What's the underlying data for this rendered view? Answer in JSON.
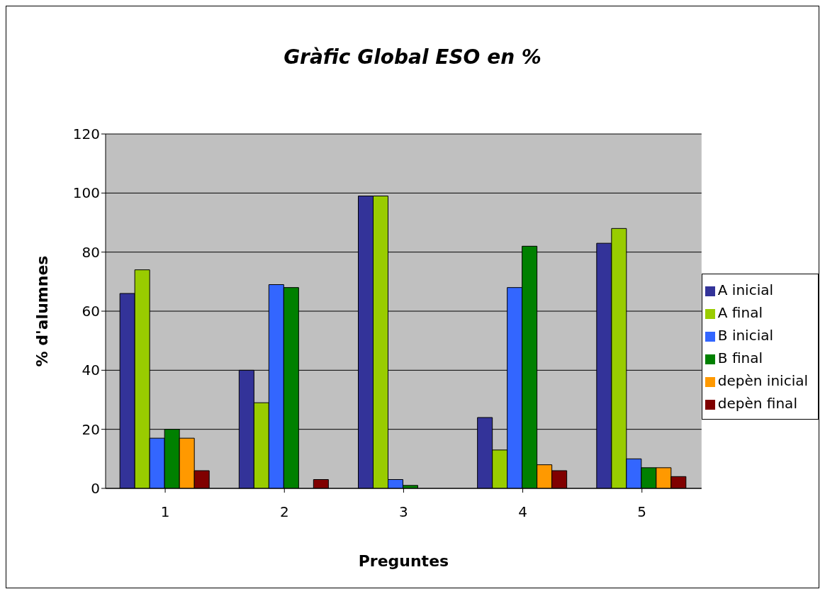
{
  "chart_data": {
    "type": "bar",
    "title": "Gràfic Global ESO en %",
    "xlabel": "Preguntes",
    "ylabel": "% d'alumnes",
    "categories": [
      "1",
      "2",
      "3",
      "4",
      "5"
    ],
    "series": [
      {
        "name": "A inicial",
        "color": "#333399",
        "values": [
          66,
          40,
          99,
          24,
          83
        ]
      },
      {
        "name": "A final",
        "color": "#99cc00",
        "values": [
          74,
          29,
          99,
          13,
          88
        ]
      },
      {
        "name": "B inicial",
        "color": "#3366ff",
        "values": [
          17,
          69,
          3,
          68,
          10
        ]
      },
      {
        "name": "B final",
        "color": "#008000",
        "values": [
          20,
          68,
          1,
          82,
          7
        ]
      },
      {
        "name": "depèn inicial",
        "color": "#ff9900",
        "values": [
          17,
          0,
          0,
          8,
          7
        ]
      },
      {
        "name": "depèn final",
        "color": "#800000",
        "values": [
          6,
          3,
          0,
          6,
          4
        ]
      }
    ],
    "ylim": [
      0,
      120
    ],
    "yticks": [
      0,
      20,
      40,
      60,
      80,
      100,
      120
    ],
    "grid": "y",
    "legend": "right"
  }
}
